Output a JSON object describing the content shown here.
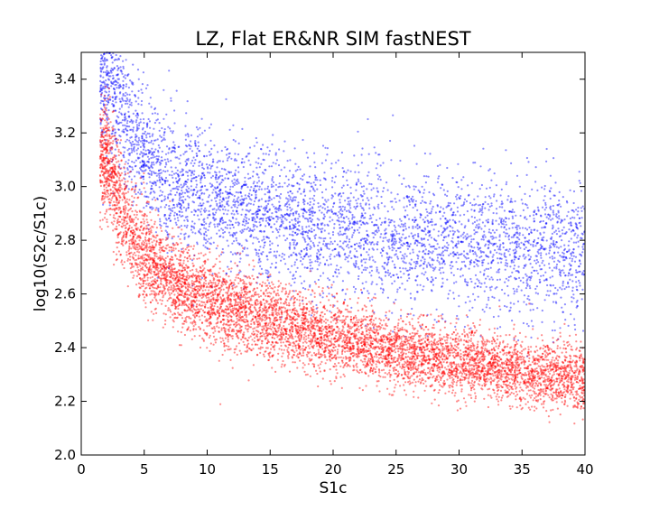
{
  "chart_data": {
    "type": "scatter",
    "title": "LZ, Flat ER&NR SIM fastNEST",
    "xlabel": "S1c",
    "ylabel": "log10(S2c/S1c)",
    "xlim": [
      0,
      40
    ],
    "ylim": [
      2.0,
      3.5
    ],
    "xticks": [
      0,
      5,
      10,
      15,
      20,
      25,
      30,
      35,
      40
    ],
    "yticks": [
      2.0,
      2.2,
      2.4,
      2.6,
      2.8,
      3.0,
      3.2,
      3.4
    ],
    "grid": false,
    "legend": "none",
    "series": [
      {
        "color": "#0000ff",
        "band": [
          {
            "x": 2,
            "center": 3.42,
            "spread": 0.14
          },
          {
            "x": 3,
            "center": 3.3,
            "spread": 0.13
          },
          {
            "x": 4,
            "center": 3.2,
            "spread": 0.13
          },
          {
            "x": 5,
            "center": 3.12,
            "spread": 0.13
          },
          {
            "x": 7,
            "center": 3.02,
            "spread": 0.13
          },
          {
            "x": 10,
            "center": 2.95,
            "spread": 0.12
          },
          {
            "x": 15,
            "center": 2.88,
            "spread": 0.12
          },
          {
            "x": 20,
            "center": 2.84,
            "spread": 0.12
          },
          {
            "x": 25,
            "center": 2.81,
            "spread": 0.12
          },
          {
            "x": 30,
            "center": 2.79,
            "spread": 0.13
          },
          {
            "x": 35,
            "center": 2.77,
            "spread": 0.13
          },
          {
            "x": 40,
            "center": 2.76,
            "spread": 0.13
          }
        ]
      },
      {
        "color": "#ff0000",
        "band": [
          {
            "x": 2,
            "center": 3.1,
            "spread": 0.1
          },
          {
            "x": 3,
            "center": 2.95,
            "spread": 0.1
          },
          {
            "x": 4,
            "center": 2.82,
            "spread": 0.09
          },
          {
            "x": 5,
            "center": 2.75,
            "spread": 0.09
          },
          {
            "x": 7,
            "center": 2.66,
            "spread": 0.08
          },
          {
            "x": 10,
            "center": 2.58,
            "spread": 0.08
          },
          {
            "x": 15,
            "center": 2.5,
            "spread": 0.07
          },
          {
            "x": 20,
            "center": 2.44,
            "spread": 0.07
          },
          {
            "x": 25,
            "center": 2.39,
            "spread": 0.06
          },
          {
            "x": 30,
            "center": 2.35,
            "spread": 0.06
          },
          {
            "x": 35,
            "center": 2.31,
            "spread": 0.06
          },
          {
            "x": 40,
            "center": 2.28,
            "spread": 0.06
          }
        ]
      }
    ]
  }
}
